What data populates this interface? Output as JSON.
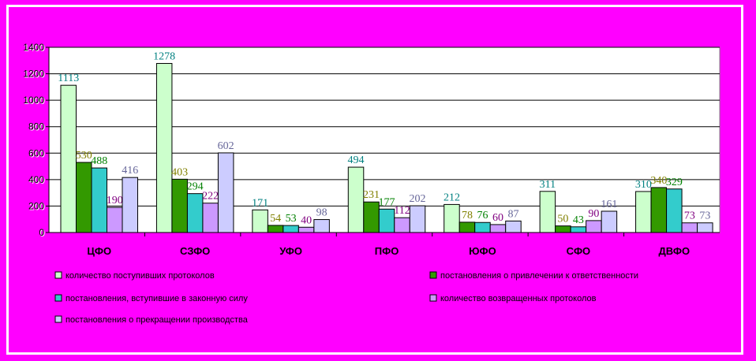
{
  "chart_data": {
    "type": "bar",
    "categories": [
      "ЦФО",
      "СЗФО",
      "УФО",
      "ПФО",
      "ЮФО",
      "СФО",
      "ДВФО"
    ],
    "ylim": [
      0,
      1400
    ],
    "yticks": [
      "0",
      "200",
      "400",
      "600",
      "800",
      "1000",
      "1200",
      "1400"
    ],
    "grid": true,
    "legend_position": "bottom",
    "series": [
      {
        "name": "количество поступивших протоколов",
        "color": "#ccffcc",
        "label_color": "#008080",
        "values": [
          1113,
          1278,
          171,
          494,
          212,
          311,
          310
        ]
      },
      {
        "name": "постановления о привлечении к ответственности",
        "color": "#339900",
        "label_color": "#808000",
        "values": [
          530,
          403,
          54,
          231,
          78,
          50,
          340
        ]
      },
      {
        "name": "постановления, вступившие в законную силу",
        "color": "#33cccc",
        "label_color": "#008000",
        "values": [
          488,
          294,
          53,
          177,
          76,
          43,
          329
        ]
      },
      {
        "name": "количество возвращенных протоколов",
        "color": "#cc99ff",
        "label_color": "#800080",
        "values": [
          190,
          222,
          40,
          112,
          60,
          90,
          73
        ]
      },
      {
        "name": "постановления о прекращении производства",
        "color": "#ccccff",
        "label_color": "#666699",
        "values": [
          416,
          602,
          98,
          202,
          87,
          161,
          73
        ]
      }
    ],
    "data_labels": [
      [
        "1113",
        "530",
        "488",
        "190",
        "416"
      ],
      [
        "1278",
        "403",
        "294",
        "222",
        "602"
      ],
      [
        "171",
        "54",
        "53",
        "40",
        "98"
      ],
      [
        "494",
        "231",
        "177",
        "112",
        "202"
      ],
      [
        "212",
        "78",
        "76",
        "60",
        "87"
      ],
      [
        "311",
        "50",
        "43",
        "90",
        "161"
      ],
      [
        "310",
        "340",
        "329",
        "73",
        "73"
      ]
    ]
  }
}
